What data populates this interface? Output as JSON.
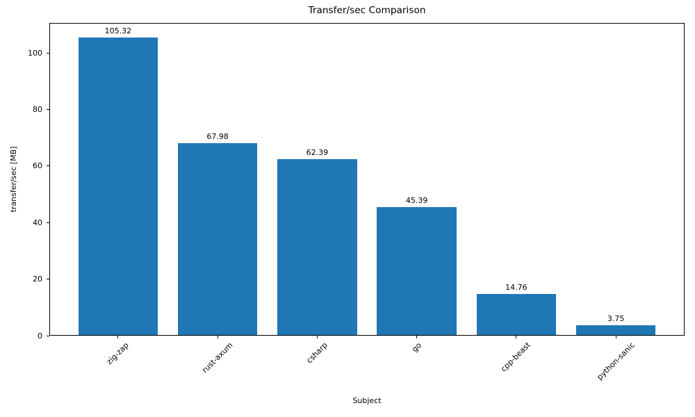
{
  "chart_data": {
    "type": "bar",
    "title": "Transfer/sec Comparison",
    "xlabel": "Subject",
    "ylabel": "transfer/sec [MB]",
    "categories": [
      "zig-zap",
      "rust-axum",
      "csharp",
      "go",
      "cpp-beast",
      "python-sanic"
    ],
    "values": [
      105.32,
      67.98,
      62.39,
      45.39,
      14.76,
      3.75
    ],
    "bar_labels": [
      "105.32",
      "67.98",
      "62.39",
      "45.39",
      "14.76",
      "3.75"
    ],
    "bar_color": "#1f77b4",
    "background_color": "#ffffff",
    "text_color": "#000000",
    "axis_color": "#000000",
    "bar_width_fraction": 0.8,
    "ylim": [
      0,
      110.6
    ],
    "yticks": [
      0,
      20,
      40,
      60,
      80,
      100
    ],
    "x_tick_rotation_deg": 45,
    "grid": false,
    "legend": null
  }
}
